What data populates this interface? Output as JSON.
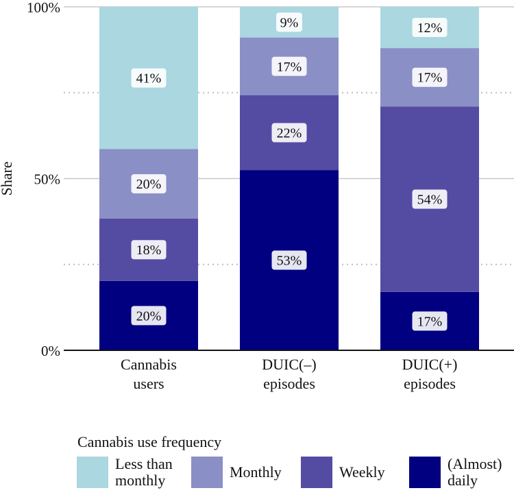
{
  "chart_data": {
    "type": "bar",
    "stacked": true,
    "normalized": true,
    "categories": [
      [
        "Cannabis",
        "users"
      ],
      [
        "DUIC(–)",
        "episodes"
      ],
      [
        "DUIC(+)",
        "episodes"
      ]
    ],
    "series": [
      {
        "name": "(Almost) daily",
        "legend_lines": [
          "(Almost)",
          "daily"
        ],
        "color": "#000080",
        "values": [
          20,
          53,
          17
        ],
        "labels": [
          "20%",
          "53%",
          "17%"
        ]
      },
      {
        "name": "Weekly",
        "legend_lines": [
          "Weekly"
        ],
        "color": "#544ca3",
        "values": [
          18,
          22,
          54
        ],
        "labels": [
          "18%",
          "22%",
          "54%"
        ]
      },
      {
        "name": "Monthly",
        "legend_lines": [
          "Monthly"
        ],
        "color": "#8a8fc5",
        "values": [
          20,
          17,
          17
        ],
        "labels": [
          "20%",
          "17%",
          "17%"
        ]
      },
      {
        "name": "Less than monthly",
        "legend_lines": [
          "Less than",
          "monthly"
        ],
        "color": "#aad7e0",
        "values": [
          41,
          9,
          12
        ],
        "labels": [
          "41%",
          "9%",
          "12%"
        ]
      }
    ],
    "ylabel": "Share",
    "xlabel": "",
    "ylim": [
      0,
      100
    ],
    "y_ticks": [
      0,
      50,
      100
    ],
    "y_tick_labels": [
      "0%",
      "50%",
      "100%"
    ],
    "minor_gridlines": [
      25,
      75
    ],
    "grid": true,
    "legend": {
      "title": "Cannabis use frequency",
      "position": "bottom",
      "order": [
        "Less than monthly",
        "Monthly",
        "Weekly",
        "(Almost) daily"
      ]
    }
  }
}
